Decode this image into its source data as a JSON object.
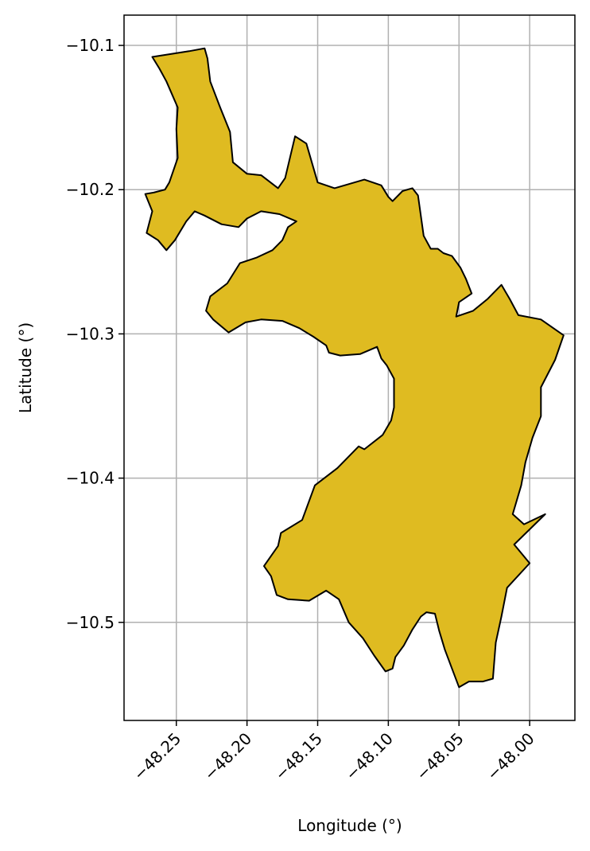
{
  "chart_data": {
    "type": "map",
    "xlabel": "Longitude (°)",
    "ylabel": "Latitude (°)",
    "xlim": [
      -48.287,
      -47.968
    ],
    "ylim": [
      -10.568,
      -10.079
    ],
    "x_ticks": [
      -48.25,
      -48.2,
      -48.15,
      -48.1,
      -48.05,
      -48.0
    ],
    "x_tick_labels": [
      "−48.25",
      "−48.20",
      "−48.15",
      "−48.10",
      "−48.05",
      "−48.00"
    ],
    "y_ticks": [
      -10.1,
      -10.2,
      -10.3,
      -10.4,
      -10.5
    ],
    "y_tick_labels": [
      "−10.1",
      "−10.2",
      "−10.3",
      "−10.4",
      "−10.5"
    ],
    "grid": true,
    "fill_color": "#dfbb21",
    "edge_color": "#000000",
    "boundary": [
      [
        -48.267,
        -10.108
      ],
      [
        -48.241,
        -10.104
      ],
      [
        -48.23,
        -10.102
      ],
      [
        -48.228,
        -10.109
      ],
      [
        -48.226,
        -10.125
      ],
      [
        -48.219,
        -10.143
      ],
      [
        -48.212,
        -10.16
      ],
      [
        -48.21,
        -10.181
      ],
      [
        -48.2,
        -10.189
      ],
      [
        -48.19,
        -10.19
      ],
      [
        -48.178,
        -10.199
      ],
      [
        -48.173,
        -10.192
      ],
      [
        -48.166,
        -10.163
      ],
      [
        -48.158,
        -10.168
      ],
      [
        -48.15,
        -10.195
      ],
      [
        -48.138,
        -10.199
      ],
      [
        -48.117,
        -10.193
      ],
      [
        -48.105,
        -10.197
      ],
      [
        -48.1,
        -10.205
      ],
      [
        -48.097,
        -10.208
      ],
      [
        -48.09,
        -10.201
      ],
      [
        -48.083,
        -10.199
      ],
      [
        -48.079,
        -10.204
      ],
      [
        -48.075,
        -10.232
      ],
      [
        -48.07,
        -10.241
      ],
      [
        -48.065,
        -10.241
      ],
      [
        -48.061,
        -10.244
      ],
      [
        -48.055,
        -10.246
      ],
      [
        -48.049,
        -10.254
      ],
      [
        -48.045,
        -10.262
      ],
      [
        -48.041,
        -10.272
      ],
      [
        -48.05,
        -10.278
      ],
      [
        -48.052,
        -10.288
      ],
      [
        -48.04,
        -10.284
      ],
      [
        -48.03,
        -10.276
      ],
      [
        -48.02,
        -10.266
      ],
      [
        -48.014,
        -10.276
      ],
      [
        -48.008,
        -10.287
      ],
      [
        -47.992,
        -10.29
      ],
      [
        -47.976,
        -10.301
      ],
      [
        -47.982,
        -10.318
      ],
      [
        -47.992,
        -10.337
      ],
      [
        -47.992,
        -10.357
      ],
      [
        -47.998,
        -10.372
      ],
      [
        -48.003,
        -10.389
      ],
      [
        -48.006,
        -10.405
      ],
      [
        -48.012,
        -10.425
      ],
      [
        -48.004,
        -10.432
      ],
      [
        -47.989,
        -10.425
      ],
      [
        -48.011,
        -10.446
      ],
      [
        -48.0,
        -10.459
      ],
      [
        -48.016,
        -10.476
      ],
      [
        -48.02,
        -10.496
      ],
      [
        -48.024,
        -10.514
      ],
      [
        -48.026,
        -10.539
      ],
      [
        -48.033,
        -10.541
      ],
      [
        -48.043,
        -10.541
      ],
      [
        -48.05,
        -10.545
      ],
      [
        -48.055,
        -10.532
      ],
      [
        -48.06,
        -10.519
      ],
      [
        -48.064,
        -10.506
      ],
      [
        -48.067,
        -10.494
      ],
      [
        -48.073,
        -10.493
      ],
      [
        -48.077,
        -10.496
      ],
      [
        -48.083,
        -10.505
      ],
      [
        -48.089,
        -10.516
      ],
      [
        -48.095,
        -10.524
      ],
      [
        -48.097,
        -10.532
      ],
      [
        -48.102,
        -10.534
      ],
      [
        -48.11,
        -10.523
      ],
      [
        -48.118,
        -10.511
      ],
      [
        -48.128,
        -10.5
      ],
      [
        -48.135,
        -10.484
      ],
      [
        -48.144,
        -10.478
      ],
      [
        -48.156,
        -10.485
      ],
      [
        -48.171,
        -10.484
      ],
      [
        -48.179,
        -10.481
      ],
      [
        -48.183,
        -10.468
      ],
      [
        -48.188,
        -10.461
      ],
      [
        -48.178,
        -10.447
      ],
      [
        -48.176,
        -10.438
      ],
      [
        -48.161,
        -10.429
      ],
      [
        -48.152,
        -10.405
      ],
      [
        -48.136,
        -10.393
      ],
      [
        -48.121,
        -10.378
      ],
      [
        -48.117,
        -10.38
      ],
      [
        -48.104,
        -10.37
      ],
      [
        -48.098,
        -10.36
      ],
      [
        -48.096,
        -10.351
      ],
      [
        -48.096,
        -10.331
      ],
      [
        -48.101,
        -10.322
      ],
      [
        -48.105,
        -10.317
      ],
      [
        -48.108,
        -10.309
      ],
      [
        -48.12,
        -10.314
      ],
      [
        -48.134,
        -10.315
      ],
      [
        -48.142,
        -10.313
      ],
      [
        -48.144,
        -10.308
      ],
      [
        -48.153,
        -10.302
      ],
      [
        -48.163,
        -10.296
      ],
      [
        -48.175,
        -10.291
      ],
      [
        -48.19,
        -10.29
      ],
      [
        -48.201,
        -10.292
      ],
      [
        -48.213,
        -10.299
      ],
      [
        -48.224,
        -10.29
      ],
      [
        -48.229,
        -10.284
      ],
      [
        -48.226,
        -10.274
      ],
      [
        -48.214,
        -10.265
      ],
      [
        -48.205,
        -10.251
      ],
      [
        -48.193,
        -10.247
      ],
      [
        -48.182,
        -10.242
      ],
      [
        -48.175,
        -10.235
      ],
      [
        -48.171,
        -10.226
      ],
      [
        -48.165,
        -10.222
      ],
      [
        -48.177,
        -10.217
      ],
      [
        -48.19,
        -10.215
      ],
      [
        -48.2,
        -10.22
      ],
      [
        -48.206,
        -10.226
      ],
      [
        -48.218,
        -10.224
      ],
      [
        -48.23,
        -10.218
      ],
      [
        -48.237,
        -10.215
      ],
      [
        -48.243,
        -10.222
      ],
      [
        -48.251,
        -10.235
      ],
      [
        -48.257,
        -10.242
      ],
      [
        -48.263,
        -10.235
      ],
      [
        -48.271,
        -10.23
      ],
      [
        -48.267,
        -10.215
      ],
      [
        -48.272,
        -10.203
      ],
      [
        -48.266,
        -10.202
      ],
      [
        -48.258,
        -10.2
      ],
      [
        -48.255,
        -10.195
      ],
      [
        -48.249,
        -10.178
      ],
      [
        -48.25,
        -10.158
      ],
      [
        -48.249,
        -10.143
      ],
      [
        -48.257,
        -10.125
      ],
      [
        -48.262,
        -10.116
      ],
      [
        -48.267,
        -10.108
      ]
    ]
  }
}
